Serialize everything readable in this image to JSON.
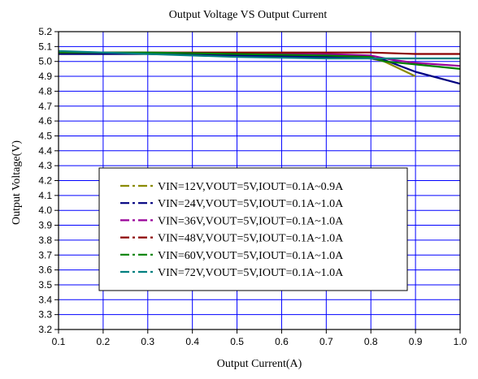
{
  "chart_data": {
    "type": "line",
    "title": "Output Voltage VS Output Current",
    "xlabel": "Output Current(A)",
    "ylabel": "Output Voltage(V)",
    "xlim": [
      0.1,
      1.0
    ],
    "ylim": [
      3.2,
      5.2
    ],
    "x_ticks": [
      "0.1",
      "0.2",
      "0.3",
      "0.4",
      "0.5",
      "0.6",
      "0.7",
      "0.8",
      "0.9",
      "1.0"
    ],
    "y_ticks": [
      "3.2",
      "3.3",
      "3.4",
      "3.5",
      "3.6",
      "3.7",
      "3.8",
      "3.9",
      "4.0",
      "4.1",
      "4.2",
      "4.3",
      "4.4",
      "4.5",
      "4.6",
      "4.7",
      "4.8",
      "4.9",
      "5.0",
      "5.1",
      "5.2"
    ],
    "grid": true,
    "legend_position": "center-left",
    "series": [
      {
        "name": "VIN=12V,VOUT=5V,IOUT=0.1A~0.9A",
        "color": "#8b8b00",
        "x": [
          0.1,
          0.3,
          0.5,
          0.7,
          0.8,
          0.83,
          0.9
        ],
        "y": [
          5.05,
          5.05,
          5.04,
          5.03,
          5.02,
          5.0,
          4.9
        ]
      },
      {
        "name": "VIN=24V,VOUT=5V,IOUT=0.1A~1.0A",
        "color": "#000080",
        "x": [
          0.1,
          0.3,
          0.5,
          0.7,
          0.8,
          0.83,
          0.9,
          1.0
        ],
        "y": [
          5.05,
          5.05,
          5.04,
          5.03,
          5.02,
          5.01,
          4.93,
          4.85
        ]
      },
      {
        "name": "VIN=36V,VOUT=5V,IOUT=0.1A~1.0A",
        "color": "#990099",
        "x": [
          0.1,
          0.3,
          0.5,
          0.7,
          0.8,
          0.85,
          0.9,
          1.0
        ],
        "y": [
          5.06,
          5.06,
          5.05,
          5.05,
          5.04,
          5.01,
          4.99,
          4.97
        ]
      },
      {
        "name": "VIN=48V,VOUT=5V,IOUT=0.1A~1.0A",
        "color": "#8b0000",
        "x": [
          0.1,
          0.3,
          0.5,
          0.7,
          0.8,
          0.9,
          1.0
        ],
        "y": [
          5.06,
          5.06,
          5.06,
          5.06,
          5.06,
          5.05,
          5.05
        ]
      },
      {
        "name": "VIN=60V,VOUT=5V,IOUT=0.1A~1.0A",
        "color": "#008000",
        "x": [
          0.1,
          0.3,
          0.5,
          0.7,
          0.8,
          0.83,
          0.9,
          1.0
        ],
        "y": [
          5.06,
          5.06,
          5.05,
          5.04,
          5.03,
          5.0,
          4.98,
          4.95
        ]
      },
      {
        "name": "VIN=72V,VOUT=5V,IOUT=0.1A~1.0A",
        "color": "#008080",
        "x": [
          0.1,
          0.3,
          0.5,
          0.7,
          0.8,
          0.9,
          1.0
        ],
        "y": [
          5.07,
          5.05,
          5.03,
          5.02,
          5.02,
          5.02,
          5.02
        ]
      }
    ]
  }
}
